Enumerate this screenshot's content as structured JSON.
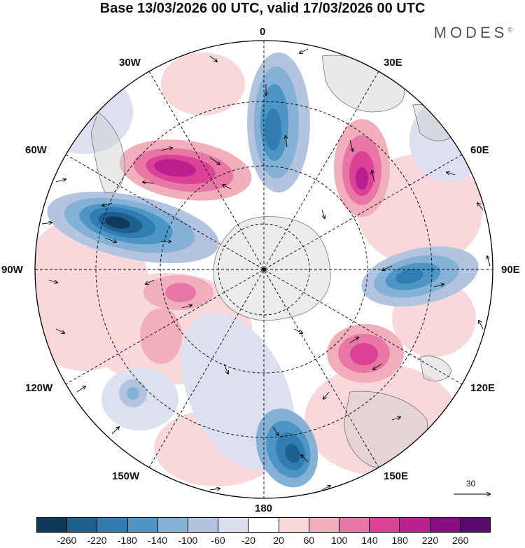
{
  "header": {
    "title": "Base 13/03/2026 00 UTC, valid 17/03/2026 00 UTC",
    "brand": "MODES",
    "brand_mark": "©"
  },
  "map": {
    "projection": "south-polar-stereographic",
    "longitude_labels": {
      "lon_0": "0",
      "lon_30e": "30E",
      "lon_60e": "60E",
      "lon_90e": "90E",
      "lon_120e": "120E",
      "lon_150e": "150E",
      "lon_180": "180",
      "lon_150w": "150W",
      "lon_120w": "120W",
      "lon_90w": "90W",
      "lon_60w": "60W",
      "lon_30w": "30W"
    },
    "vector_scale_label": "30",
    "anomaly_features": [
      {
        "name": "positive-center-south-america",
        "sign": "positive",
        "peak_class": "220"
      },
      {
        "name": "positive-center-south-atlantic",
        "sign": "positive",
        "peak_class": "220"
      },
      {
        "name": "positive-center-indian-ocean",
        "sign": "positive",
        "peak_class": "180"
      },
      {
        "name": "negative-center-amundsen-sea",
        "sign": "negative",
        "peak_class": "-260"
      },
      {
        "name": "negative-center-weddell",
        "sign": "negative",
        "peak_class": "-180"
      },
      {
        "name": "negative-center-southern-indian",
        "sign": "negative",
        "peak_class": "-180"
      },
      {
        "name": "negative-center-ross-tasman",
        "sign": "negative",
        "peak_class": "-220"
      }
    ]
  },
  "colorbar": {
    "colors": [
      "#0f3a5a",
      "#1d5f8e",
      "#2f7db2",
      "#4c95c4",
      "#86b1d6",
      "#b2c4e0",
      "#dcdff0",
      "#ffffff",
      "#f8d6d9",
      "#f1aebd",
      "#e877a6",
      "#db4196",
      "#bb1e8d",
      "#8a0c82",
      "#5a0a6c"
    ],
    "tick_labels": [
      "-260",
      "-220",
      "-180",
      "-140",
      "-100",
      "-60",
      "-20",
      "20",
      "60",
      "100",
      "140",
      "180",
      "220",
      "260"
    ]
  }
}
